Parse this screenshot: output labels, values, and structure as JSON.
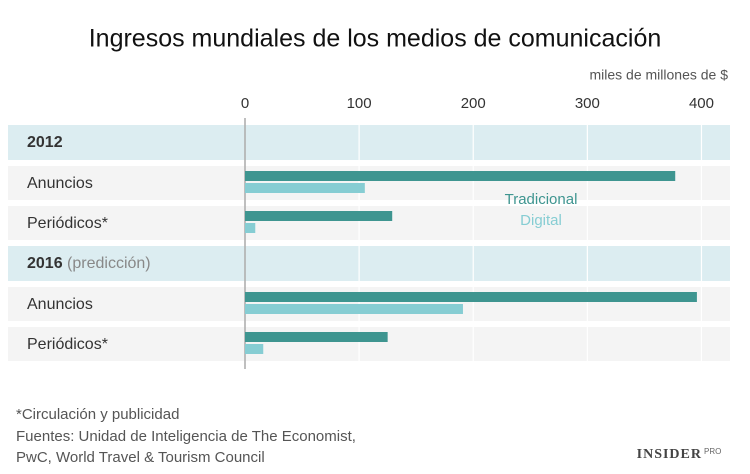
{
  "chart_data": {
    "type": "grouped_hbar",
    "title": "Ingresos mundiales de los medios de comunicación",
    "x_label": "miles de millones de $",
    "groups": [
      {
        "name": "2012",
        "categories": [
          "Anuncios",
          "Periódicos*"
        ]
      },
      {
        "name": "2016",
        "note": "(predicción)",
        "categories": [
          "Anuncios",
          "Periódicos*"
        ]
      }
    ],
    "series": [
      {
        "name": "Tradicional",
        "color": "#3e9590",
        "values": [
          377,
          129,
          396,
          125
        ]
      },
      {
        "name": "Digital",
        "color": "#86cdd3",
        "values": [
          105,
          9,
          191,
          16
        ]
      }
    ],
    "xlim": [
      0,
      425
    ],
    "xticks": [
      0,
      100,
      200,
      300,
      400
    ],
    "grid": true,
    "footnotes": [
      "*Circulación y publicidad",
      "Fuentes: Unidad de Inteligencia de The Economist,",
      "PwC, World Travel & Tourism Council"
    ],
    "logo": {
      "text": "INSIDER",
      "sub": "PRO"
    }
  }
}
